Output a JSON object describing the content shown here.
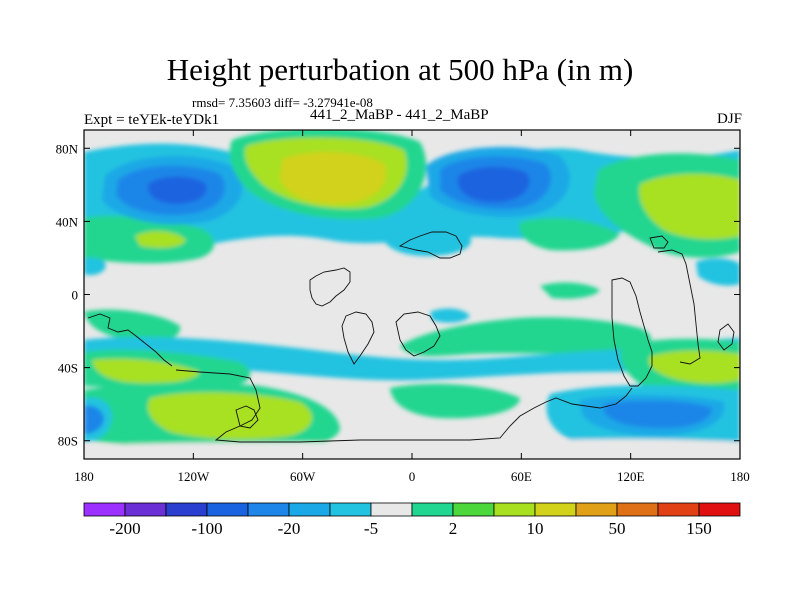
{
  "title": "Height perturbation at 500 hPa (in m)",
  "stats": "rmsd= 7.35603 diff= -3.27941e-08",
  "expt_label": "Expt = teYEk-teYDk1",
  "subtitle": "441_2_MaBP - 441_2_MaBP",
  "season": "DJF",
  "map": {
    "projection": "cylindrical equidistant",
    "lon_range": [
      -180,
      180
    ],
    "lat_range": [
      -90,
      90
    ],
    "lon_ticks": [
      {
        "value": -180,
        "label": "180"
      },
      {
        "value": -120,
        "label": "120W"
      },
      {
        "value": -60,
        "label": "60W"
      },
      {
        "value": 0,
        "label": "0"
      },
      {
        "value": 60,
        "label": "60E"
      },
      {
        "value": 120,
        "label": "120E"
      },
      {
        "value": 180,
        "label": "180"
      }
    ],
    "lat_ticks": [
      {
        "value": 80,
        "label": "80N"
      },
      {
        "value": 40,
        "label": "40N"
      },
      {
        "value": 0,
        "label": "0"
      },
      {
        "value": -40,
        "label": "40S"
      },
      {
        "value": -80,
        "label": "80S"
      }
    ],
    "anomaly_centers": [
      {
        "lon": -135,
        "lat": 58,
        "value": -45
      },
      {
        "lon": -40,
        "lat": 65,
        "value": 45
      },
      {
        "lon": 40,
        "lat": 60,
        "value": -40
      },
      {
        "lon": 145,
        "lat": 57,
        "value": 12
      },
      {
        "lon": -130,
        "lat": 32,
        "value": 8
      },
      {
        "lon": 20,
        "lat": 26,
        "value": -5
      },
      {
        "lon": 60,
        "lat": -18,
        "value": 5
      },
      {
        "lon": -175,
        "lat": -65,
        "value": 12
      },
      {
        "lon": -90,
        "lat": -66,
        "value": 15
      },
      {
        "lon": -170,
        "lat": -35,
        "value": 7
      },
      {
        "lon": 150,
        "lat": -39,
        "value": 12
      },
      {
        "lon": 140,
        "lat": -68,
        "value": -8
      },
      {
        "lon": 30,
        "lat": -48,
        "value": -5
      }
    ]
  },
  "colorbar": {
    "colors": [
      "#9b30ff",
      "#6b2fd6",
      "#2a3fd0",
      "#1a63e0",
      "#1d86e8",
      "#1aa8e6",
      "#22c3e0",
      "#e8e8e8",
      "#20d690",
      "#4cd83c",
      "#a8e020",
      "#d2d21a",
      "#e0a018",
      "#e07016",
      "#e04014",
      "#e01010"
    ],
    "tick_labels": [
      "-200",
      "-100",
      "-20",
      "-5",
      "2",
      "10",
      "50",
      "150"
    ]
  }
}
